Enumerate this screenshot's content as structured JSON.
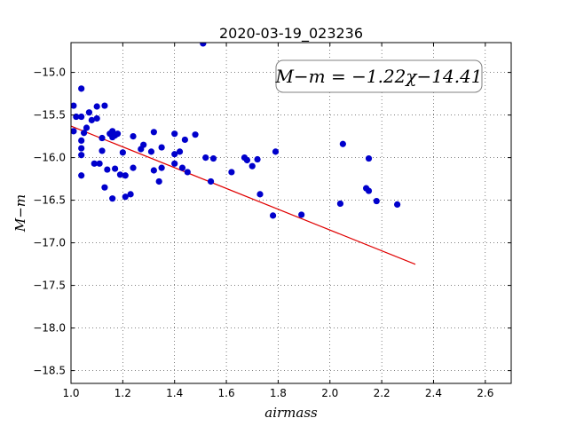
{
  "chart_data": {
    "type": "scatter",
    "title": "2020-03-19_023236",
    "xlabel": "airmass",
    "ylabel": "M−m",
    "xlim": [
      1.0,
      2.7
    ],
    "ylim": [
      -18.65,
      -14.65
    ],
    "y_inverted": true,
    "grid": true,
    "x_ticks": [
      1.0,
      1.2,
      1.4,
      1.6,
      1.8,
      2.0,
      2.2,
      2.4,
      2.6
    ],
    "x_tick_labels": [
      "1.0",
      "1.2",
      "1.4",
      "1.6",
      "1.8",
      "2.0",
      "2.2",
      "2.4",
      "2.6"
    ],
    "y_ticks": [
      -15.0,
      -15.5,
      -16.0,
      -16.5,
      -17.0,
      -17.5,
      -18.0,
      -18.5
    ],
    "y_tick_labels": [
      "−15.0",
      "−15.5",
      "−16.0",
      "−16.5",
      "−17.0",
      "−17.5",
      "−18.0",
      "−18.5"
    ],
    "annotation": "M−m = −1.22χ−14.41",
    "fit": {
      "slope": -1.22,
      "intercept": -14.41,
      "x_range": [
        1.0,
        2.33
      ],
      "color": "#e00000"
    },
    "points_color": "#0000cc",
    "points": [
      [
        1.01,
        -15.39
      ],
      [
        1.02,
        -15.52
      ],
      [
        1.01,
        -15.69
      ],
      [
        1.04,
        -15.52
      ],
      [
        1.04,
        -15.19
      ],
      [
        1.04,
        -15.8
      ],
      [
        1.05,
        -15.71
      ],
      [
        1.04,
        -15.89
      ],
      [
        1.04,
        -15.97
      ],
      [
        1.04,
        -16.21
      ],
      [
        1.06,
        -15.65
      ],
      [
        1.07,
        -15.47
      ],
      [
        1.08,
        -15.56
      ],
      [
        1.1,
        -15.4
      ],
      [
        1.1,
        -15.54
      ],
      [
        1.09,
        -16.07
      ],
      [
        1.11,
        -16.07
      ],
      [
        1.12,
        -15.92
      ],
      [
        1.12,
        -15.77
      ],
      [
        1.13,
        -15.39
      ],
      [
        1.13,
        -16.35
      ],
      [
        1.14,
        -16.14
      ],
      [
        1.15,
        -15.72
      ],
      [
        1.16,
        -15.69
      ],
      [
        1.16,
        -15.76
      ],
      [
        1.17,
        -15.74
      ],
      [
        1.17,
        -16.13
      ],
      [
        1.16,
        -16.48
      ],
      [
        1.18,
        -15.72
      ],
      [
        1.19,
        -16.2
      ],
      [
        1.2,
        -15.94
      ],
      [
        1.21,
        -16.46
      ],
      [
        1.21,
        -16.21
      ],
      [
        1.23,
        -16.43
      ],
      [
        1.24,
        -15.75
      ],
      [
        1.24,
        -16.12
      ],
      [
        1.27,
        -15.9
      ],
      [
        1.28,
        -15.85
      ],
      [
        1.31,
        -15.93
      ],
      [
        1.32,
        -15.7
      ],
      [
        1.32,
        -16.15
      ],
      [
        1.34,
        -16.28
      ],
      [
        1.35,
        -15.88
      ],
      [
        1.35,
        -16.12
      ],
      [
        1.4,
        -15.72
      ],
      [
        1.4,
        -15.96
      ],
      [
        1.4,
        -16.07
      ],
      [
        1.42,
        -15.93
      ],
      [
        1.43,
        -16.12
      ],
      [
        1.44,
        -15.79
      ],
      [
        1.45,
        -16.17
      ],
      [
        1.48,
        -15.73
      ],
      [
        1.51,
        -14.66
      ],
      [
        1.52,
        -16.0
      ],
      [
        1.54,
        -16.28
      ],
      [
        1.55,
        -16.01
      ],
      [
        1.62,
        -16.17
      ],
      [
        1.67,
        -16.0
      ],
      [
        1.68,
        -16.03
      ],
      [
        1.7,
        -16.1
      ],
      [
        1.72,
        -16.02
      ],
      [
        1.73,
        -16.43
      ],
      [
        1.78,
        -16.68
      ],
      [
        1.79,
        -15.93
      ],
      [
        1.89,
        -16.67
      ],
      [
        2.04,
        -16.54
      ],
      [
        2.05,
        -15.84
      ],
      [
        2.14,
        -16.36
      ],
      [
        2.15,
        -16.01
      ],
      [
        2.15,
        -16.39
      ],
      [
        2.18,
        -16.51
      ],
      [
        2.26,
        -16.55
      ]
    ]
  }
}
